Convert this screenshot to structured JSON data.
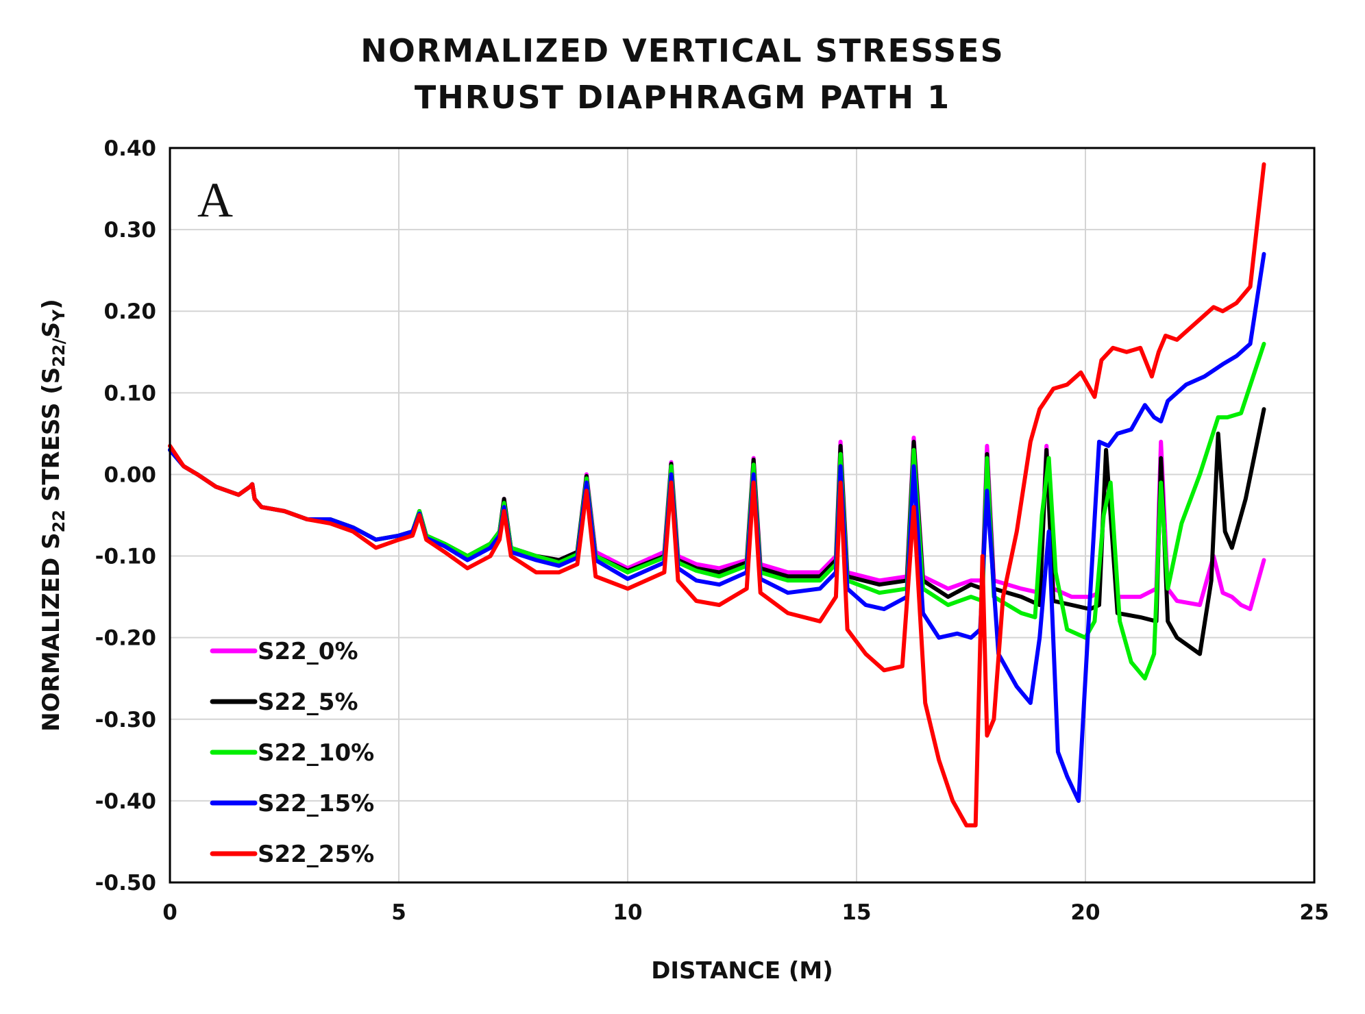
{
  "chart_data": {
    "type": "line",
    "title": [
      "NORMALIZED VERTICAL STRESSES",
      "THRUST DIAPHRAGM PATH 1"
    ],
    "panel_label": "A",
    "xlabel": "DISTANCE (M)",
    "ylabel": {
      "prefix": "NORMALIZED S",
      "sub1": "22",
      "mid": " STRESS (S",
      "sub2": "22/",
      "mid2": "S",
      "sub3": "Y",
      "suffix": ")"
    },
    "xlim": [
      0,
      25
    ],
    "ylim": [
      -0.5,
      0.4
    ],
    "xticks": [
      0,
      5,
      10,
      15,
      20,
      25
    ],
    "xtick_labels": [
      "0",
      "5",
      "10",
      "15",
      "20",
      "25"
    ],
    "yticks": [
      0.4,
      0.3,
      0.2,
      0.1,
      0.0,
      -0.1,
      -0.2,
      -0.3,
      -0.4,
      -0.5
    ],
    "ytick_labels": [
      "0.40",
      "0.30",
      "0.20",
      "0.10",
      "0.00",
      "-0.10",
      "-0.20",
      "-0.30",
      "-0.40",
      "-0.50"
    ],
    "grid": true,
    "legend_position": "bottom-left",
    "series": [
      {
        "name": "S22_0%",
        "color": "#ff00ff",
        "x": [
          0,
          0.3,
          0.6,
          1.0,
          1.5,
          1.75,
          1.8,
          1.85,
          2.0,
          2.5,
          3.0,
          3.5,
          4.0,
          4.5,
          5.0,
          5.3,
          5.45,
          5.6,
          6.0,
          6.5,
          7.0,
          7.2,
          7.3,
          7.45,
          8.0,
          8.5,
          8.9,
          9.1,
          9.3,
          10.0,
          10.8,
          10.95,
          11.1,
          11.5,
          12.0,
          12.6,
          12.75,
          12.9,
          13.5,
          14.2,
          14.55,
          14.65,
          14.8,
          15.5,
          16.1,
          16.25,
          16.45,
          17.0,
          17.5,
          17.75,
          17.85,
          18.0,
          18.6,
          19.0,
          19.15,
          19.3,
          19.7,
          20.1,
          20.3,
          20.45,
          20.7,
          21.2,
          21.55,
          21.65,
          21.8,
          22.0,
          22.5,
          22.8,
          23.0,
          23.2,
          23.4,
          23.6,
          23.9
        ],
        "y": [
          0.03,
          0.01,
          0.0,
          -0.015,
          -0.025,
          -0.015,
          -0.012,
          -0.03,
          -0.04,
          -0.045,
          -0.055,
          -0.055,
          -0.065,
          -0.08,
          -0.075,
          -0.07,
          -0.045,
          -0.075,
          -0.085,
          -0.1,
          -0.085,
          -0.07,
          -0.03,
          -0.09,
          -0.1,
          -0.105,
          -0.095,
          0.0,
          -0.095,
          -0.115,
          -0.095,
          0.015,
          -0.1,
          -0.11,
          -0.115,
          -0.105,
          0.02,
          -0.11,
          -0.12,
          -0.12,
          -0.1,
          0.04,
          -0.12,
          -0.13,
          -0.125,
          0.045,
          -0.125,
          -0.14,
          -0.13,
          -0.13,
          0.035,
          -0.13,
          -0.14,
          -0.145,
          0.035,
          -0.14,
          -0.15,
          -0.15,
          -0.145,
          0.02,
          -0.15,
          -0.15,
          -0.14,
          0.04,
          -0.14,
          -0.155,
          -0.16,
          -0.1,
          -0.145,
          -0.15,
          -0.16,
          -0.165,
          -0.105
        ]
      },
      {
        "name": "S22_5%",
        "color": "#000000",
        "x": [
          0,
          0.3,
          0.6,
          1.0,
          1.5,
          1.75,
          1.8,
          1.85,
          2.0,
          2.5,
          3.0,
          3.5,
          4.0,
          4.5,
          5.0,
          5.3,
          5.45,
          5.6,
          6.0,
          6.5,
          7.0,
          7.2,
          7.3,
          7.45,
          8.0,
          8.5,
          8.9,
          9.1,
          9.3,
          10.0,
          10.8,
          10.95,
          11.1,
          11.5,
          12.0,
          12.6,
          12.75,
          12.9,
          13.5,
          14.2,
          14.55,
          14.65,
          14.8,
          15.5,
          16.1,
          16.25,
          16.45,
          17.0,
          17.5,
          17.75,
          17.85,
          18.0,
          18.6,
          19.0,
          19.15,
          19.3,
          19.7,
          20.1,
          20.3,
          20.45,
          20.7,
          21.2,
          21.55,
          21.65,
          21.8,
          22.0,
          22.5,
          22.75,
          22.9,
          23.05,
          23.2,
          23.5,
          23.9
        ],
        "y": [
          0.03,
          0.01,
          0.0,
          -0.015,
          -0.025,
          -0.015,
          -0.012,
          -0.03,
          -0.04,
          -0.045,
          -0.055,
          -0.055,
          -0.065,
          -0.08,
          -0.075,
          -0.07,
          -0.045,
          -0.075,
          -0.085,
          -0.1,
          -0.085,
          -0.07,
          -0.03,
          -0.09,
          -0.1,
          -0.105,
          -0.095,
          -0.002,
          -0.1,
          -0.118,
          -0.1,
          0.013,
          -0.105,
          -0.115,
          -0.12,
          -0.108,
          0.018,
          -0.115,
          -0.125,
          -0.125,
          -0.105,
          0.035,
          -0.125,
          -0.135,
          -0.13,
          0.04,
          -0.13,
          -0.15,
          -0.135,
          -0.14,
          0.025,
          -0.14,
          -0.15,
          -0.16,
          0.03,
          -0.155,
          -0.16,
          -0.165,
          -0.16,
          0.03,
          -0.17,
          -0.175,
          -0.18,
          0.02,
          -0.18,
          -0.2,
          -0.22,
          -0.13,
          0.05,
          -0.07,
          -0.09,
          -0.03,
          0.08
        ]
      },
      {
        "name": "S22_10%",
        "color": "#00ee00",
        "x": [
          0,
          0.3,
          0.6,
          1.0,
          1.5,
          1.75,
          1.8,
          1.85,
          2.0,
          2.5,
          3.0,
          3.5,
          4.0,
          4.5,
          5.0,
          5.3,
          5.45,
          5.6,
          6.0,
          6.5,
          7.0,
          7.2,
          7.3,
          7.45,
          8.0,
          8.5,
          8.9,
          9.1,
          9.3,
          10.0,
          10.8,
          10.95,
          11.1,
          11.5,
          12.0,
          12.6,
          12.75,
          12.9,
          13.5,
          14.2,
          14.55,
          14.65,
          14.8,
          15.5,
          16.1,
          16.25,
          16.45,
          17.0,
          17.5,
          17.75,
          17.85,
          18.0,
          18.6,
          18.9,
          19.05,
          19.2,
          19.35,
          19.6,
          20.0,
          20.2,
          20.4,
          20.55,
          20.75,
          21.0,
          21.3,
          21.5,
          21.65,
          21.8,
          22.1,
          22.5,
          22.9,
          23.1,
          23.4,
          23.9
        ],
        "y": [
          0.03,
          0.01,
          0.0,
          -0.015,
          -0.025,
          -0.015,
          -0.012,
          -0.03,
          -0.04,
          -0.045,
          -0.055,
          -0.055,
          -0.065,
          -0.08,
          -0.075,
          -0.07,
          -0.045,
          -0.075,
          -0.085,
          -0.1,
          -0.085,
          -0.07,
          -0.035,
          -0.09,
          -0.1,
          -0.108,
          -0.098,
          -0.005,
          -0.1,
          -0.12,
          -0.102,
          0.01,
          -0.108,
          -0.118,
          -0.125,
          -0.112,
          0.012,
          -0.12,
          -0.13,
          -0.13,
          -0.11,
          0.025,
          -0.13,
          -0.145,
          -0.14,
          0.03,
          -0.14,
          -0.16,
          -0.15,
          -0.155,
          0.02,
          -0.15,
          -0.17,
          -0.175,
          -0.05,
          0.02,
          -0.12,
          -0.19,
          -0.2,
          -0.18,
          -0.05,
          -0.01,
          -0.18,
          -0.23,
          -0.25,
          -0.22,
          -0.01,
          -0.14,
          -0.06,
          0.0,
          0.07,
          0.07,
          0.075,
          0.16
        ]
      },
      {
        "name": "S22_15%",
        "color": "#0000ff",
        "x": [
          0,
          0.3,
          0.6,
          1.0,
          1.5,
          1.75,
          1.8,
          1.85,
          2.0,
          2.5,
          3.0,
          3.5,
          4.0,
          4.5,
          5.0,
          5.3,
          5.45,
          5.6,
          6.0,
          6.5,
          7.0,
          7.2,
          7.3,
          7.45,
          8.0,
          8.5,
          8.9,
          9.1,
          9.3,
          10.0,
          10.8,
          10.95,
          11.1,
          11.5,
          12.0,
          12.6,
          12.75,
          12.9,
          13.5,
          14.2,
          14.55,
          14.65,
          14.8,
          15.2,
          15.6,
          16.1,
          16.25,
          16.45,
          16.8,
          17.2,
          17.5,
          17.7,
          17.85,
          18.1,
          18.5,
          18.8,
          19.0,
          19.2,
          19.4,
          19.6,
          19.85,
          20.05,
          20.3,
          20.5,
          20.7,
          21.0,
          21.3,
          21.5,
          21.65,
          21.8,
          22.2,
          22.6,
          23.0,
          23.3,
          23.6,
          23.9
        ],
        "y": [
          0.03,
          0.01,
          0.0,
          -0.015,
          -0.025,
          -0.015,
          -0.012,
          -0.03,
          -0.04,
          -0.045,
          -0.055,
          -0.055,
          -0.065,
          -0.08,
          -0.075,
          -0.07,
          -0.048,
          -0.078,
          -0.088,
          -0.105,
          -0.09,
          -0.075,
          -0.04,
          -0.095,
          -0.105,
          -0.112,
          -0.102,
          -0.01,
          -0.105,
          -0.128,
          -0.108,
          0.0,
          -0.115,
          -0.13,
          -0.135,
          -0.12,
          0.0,
          -0.128,
          -0.145,
          -0.14,
          -0.12,
          0.01,
          -0.14,
          -0.16,
          -0.165,
          -0.15,
          0.01,
          -0.17,
          -0.2,
          -0.195,
          -0.2,
          -0.19,
          -0.02,
          -0.22,
          -0.26,
          -0.28,
          -0.2,
          -0.07,
          -0.34,
          -0.37,
          -0.4,
          -0.2,
          0.04,
          0.035,
          0.05,
          0.055,
          0.085,
          0.07,
          0.065,
          0.09,
          0.11,
          0.12,
          0.135,
          0.145,
          0.16,
          0.27
        ]
      },
      {
        "name": "S22_25%",
        "color": "#ff0000",
        "x": [
          0,
          0.3,
          0.6,
          1.0,
          1.5,
          1.75,
          1.8,
          1.85,
          2.0,
          2.5,
          3.0,
          3.5,
          4.0,
          4.5,
          5.0,
          5.3,
          5.45,
          5.6,
          6.0,
          6.5,
          7.0,
          7.2,
          7.3,
          7.45,
          8.0,
          8.5,
          8.9,
          9.1,
          9.3,
          10.0,
          10.8,
          10.95,
          11.1,
          11.5,
          12.0,
          12.6,
          12.75,
          12.9,
          13.5,
          14.2,
          14.55,
          14.65,
          14.8,
          15.2,
          15.6,
          16.0,
          16.25,
          16.5,
          16.8,
          17.1,
          17.4,
          17.6,
          17.75,
          17.85,
          18.0,
          18.2,
          18.5,
          18.8,
          19.0,
          19.3,
          19.6,
          19.9,
          20.2,
          20.35,
          20.6,
          20.9,
          21.2,
          21.45,
          21.6,
          21.75,
          22.0,
          22.5,
          22.8,
          23.0,
          23.3,
          23.6,
          23.9
        ],
        "y": [
          0.035,
          0.01,
          0.0,
          -0.015,
          -0.025,
          -0.015,
          -0.012,
          -0.03,
          -0.04,
          -0.045,
          -0.055,
          -0.06,
          -0.07,
          -0.09,
          -0.08,
          -0.075,
          -0.05,
          -0.08,
          -0.095,
          -0.115,
          -0.1,
          -0.08,
          -0.045,
          -0.1,
          -0.12,
          -0.12,
          -0.11,
          -0.02,
          -0.125,
          -0.14,
          -0.12,
          -0.01,
          -0.13,
          -0.155,
          -0.16,
          -0.14,
          -0.01,
          -0.145,
          -0.17,
          -0.18,
          -0.15,
          -0.01,
          -0.19,
          -0.22,
          -0.24,
          -0.235,
          -0.04,
          -0.28,
          -0.35,
          -0.4,
          -0.43,
          -0.43,
          -0.1,
          -0.32,
          -0.3,
          -0.15,
          -0.07,
          0.04,
          0.08,
          0.105,
          0.11,
          0.125,
          0.095,
          0.14,
          0.155,
          0.15,
          0.155,
          0.12,
          0.15,
          0.17,
          0.165,
          0.19,
          0.205,
          0.2,
          0.21,
          0.23,
          0.38
        ]
      }
    ]
  }
}
